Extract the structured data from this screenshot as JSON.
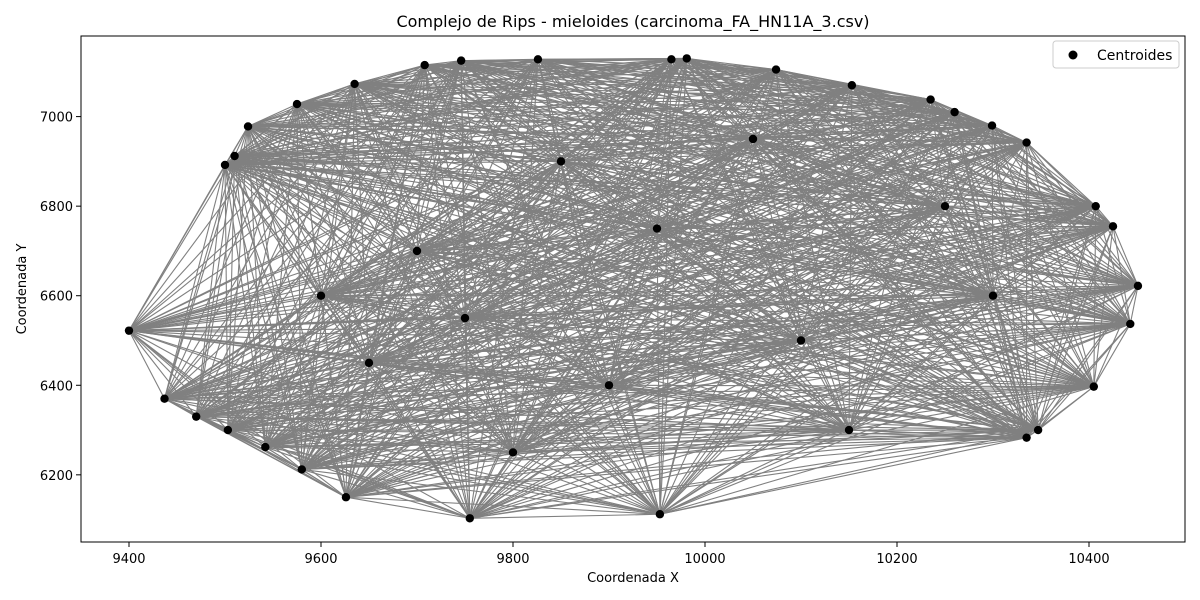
{
  "chart_data": {
    "type": "scatter",
    "title": "Complejo de Rips - mieloides (carcinoma_FA_HN11A_3.csv)",
    "xlabel": "Coordenada X",
    "ylabel": "Coordenada Y",
    "xlim": [
      9350,
      10500
    ],
    "ylim": [
      6050,
      7180
    ],
    "xticks": [
      9400,
      9600,
      9800,
      10000,
      10200,
      10400
    ],
    "yticks": [
      6200,
      6400,
      6600,
      6800,
      7000
    ],
    "grid": false,
    "legend_position": "top-right",
    "colors": {
      "points": "#000000",
      "edges": "#808080"
    },
    "series": [
      {
        "name": "Centroides",
        "points": [
          [
            9400,
            6522
          ],
          [
            9437,
            6370
          ],
          [
            9470,
            6330
          ],
          [
            9503,
            6300
          ],
          [
            9542,
            6262
          ],
          [
            9580,
            6212
          ],
          [
            9626,
            6150
          ],
          [
            9755,
            6103
          ],
          [
            9953,
            6112
          ],
          [
            10335,
            6283
          ],
          [
            10347,
            6300
          ],
          [
            10405,
            6397
          ],
          [
            10443,
            6537
          ],
          [
            10451,
            6622
          ],
          [
            10425,
            6755
          ],
          [
            10407,
            6800
          ],
          [
            10335,
            6942
          ],
          [
            10299,
            6980
          ],
          [
            10260,
            7010
          ],
          [
            10235,
            7038
          ],
          [
            10153,
            7070
          ],
          [
            10074,
            7105
          ],
          [
            9981,
            7130
          ],
          [
            9965,
            7128
          ],
          [
            9826,
            7128
          ],
          [
            9746,
            7125
          ],
          [
            9708,
            7115
          ],
          [
            9635,
            7073
          ],
          [
            9575,
            7028
          ],
          [
            9524,
            6978
          ],
          [
            9510,
            6912
          ],
          [
            9500,
            6892
          ],
          [
            9700,
            6700
          ],
          [
            9850,
            6900
          ],
          [
            10100,
            6500
          ],
          [
            9900,
            6400
          ],
          [
            9650,
            6450
          ],
          [
            10250,
            6800
          ],
          [
            9800,
            6250
          ],
          [
            10150,
            6300
          ],
          [
            9600,
            6600
          ],
          [
            10300,
            6600
          ],
          [
            9950,
            6750
          ],
          [
            9750,
            6550
          ],
          [
            10050,
            6950
          ]
        ]
      }
    ]
  }
}
